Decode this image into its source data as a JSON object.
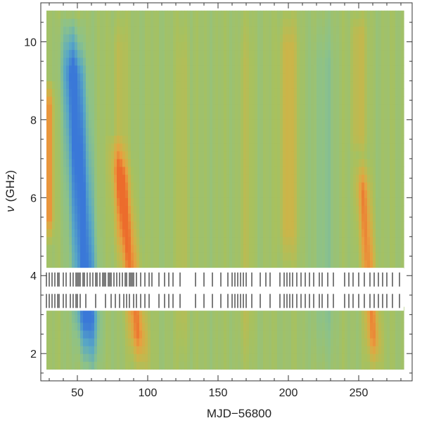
{
  "chart_data": {
    "type": "heatmap",
    "title": "",
    "xlabel": "MJD−56800",
    "ylabel_symbol": "ν",
    "ylabel_unit": "(GHz)",
    "xlim": [
      24,
      288
    ],
    "ylim": [
      1.3,
      11.0
    ],
    "x_ticks": [
      50,
      100,
      150,
      200,
      250
    ],
    "x_tick_labels": [
      "50",
      "100",
      "150",
      "200",
      "250"
    ],
    "y_ticks": [
      2,
      4,
      6,
      8,
      10
    ],
    "y_tick_labels": [
      "2",
      "4",
      "6",
      "8",
      "10"
    ],
    "heatmap_extent": {
      "x": [
        28,
        282
      ],
      "y": [
        1.6,
        10.8
      ]
    },
    "data_gap_ghz": [
      3.1,
      4.2
    ],
    "colormap": [
      "#3a78d8",
      "#5aa9c4",
      "#8cc28a",
      "#a8c15e",
      "#c9b64a",
      "#e8a040",
      "#ec6c2c"
    ],
    "background_level": 0.45,
    "features": [
      {
        "name": "early-high-band-flare",
        "x_center": 30,
        "x_width": 3,
        "y_from": 4.9,
        "y_to": 9.0,
        "drift_per_ghz": 0,
        "amplitude": 0.45
      },
      {
        "name": "low-flux-dip",
        "x_center": 55,
        "x_width": 8,
        "y_from": 1.6,
        "y_to": 10.5,
        "drift_per_ghz": -1.5,
        "amplitude": -0.5
      },
      {
        "name": "flare-1",
        "x_center": 88,
        "x_width": 6,
        "y_from": 1.6,
        "y_to": 7.5,
        "drift_per_ghz": -3.0,
        "amplitude": 0.5
      },
      {
        "name": "flare-1-tail",
        "x_center": 80,
        "x_width": 5,
        "y_from": 4.2,
        "y_to": 10.8,
        "drift_per_ghz": 0,
        "amplitude": 0.15
      },
      {
        "name": "ridge-125",
        "x_center": 125,
        "x_width": 4,
        "y_from": 1.6,
        "y_to": 10.8,
        "drift_per_ghz": 0,
        "amplitude": 0.12
      },
      {
        "name": "ridge-170",
        "x_center": 170,
        "x_width": 5,
        "y_from": 1.6,
        "y_to": 10.8,
        "drift_per_ghz": 0,
        "amplitude": 0.1
      },
      {
        "name": "ridge-200",
        "x_center": 200,
        "x_width": 6,
        "y_from": 4.2,
        "y_to": 10.8,
        "drift_per_ghz": 0,
        "amplitude": 0.25
      },
      {
        "name": "dip-225",
        "x_center": 225,
        "x_width": 8,
        "y_from": 1.6,
        "y_to": 10.8,
        "drift_per_ghz": 0,
        "amplitude": -0.12
      },
      {
        "name": "flare-2",
        "x_center": 257,
        "x_width": 5,
        "y_from": 1.6,
        "y_to": 7.0,
        "drift_per_ghz": -2.0,
        "amplitude": 0.45
      },
      {
        "name": "ridge-250",
        "x_center": 250,
        "x_width": 5,
        "y_from": 7.0,
        "y_to": 10.8,
        "drift_per_ghz": 0,
        "amplitude": 0.2
      }
    ],
    "observation_rows": [
      {
        "y_ghz": 3.9,
        "epochs": [
          28,
          30,
          32,
          34,
          36,
          37,
          40,
          42,
          45,
          47,
          49,
          50,
          51,
          52,
          54,
          55,
          57,
          59,
          61,
          63,
          64,
          66,
          68,
          69,
          70,
          72,
          73,
          74,
          76,
          78,
          80,
          82,
          84,
          85,
          87,
          88,
          89,
          90,
          92,
          95,
          98,
          101,
          103,
          108,
          112,
          115,
          118,
          123,
          134,
          140,
          146,
          152,
          157,
          160,
          162,
          164,
          166,
          168,
          170,
          174,
          180,
          184,
          187,
          194,
          197,
          199,
          201,
          203,
          206,
          209,
          212,
          215,
          218,
          222,
          224,
          228,
          232,
          240,
          243,
          246,
          250,
          254,
          258,
          261,
          264,
          267,
          270,
          274,
          279
        ]
      },
      {
        "y_ghz": 3.35,
        "epochs": [
          28,
          30,
          32,
          34,
          36,
          37,
          40,
          42,
          45,
          47,
          49,
          50,
          52,
          56,
          63,
          70,
          74,
          77,
          80,
          83,
          85,
          87,
          90,
          92,
          95,
          98,
          101,
          108,
          112,
          115,
          118,
          123,
          134,
          140,
          146,
          152,
          157,
          160,
          162,
          164,
          166,
          168,
          170,
          174,
          180,
          187,
          194,
          197,
          199,
          201,
          203,
          206,
          209,
          212,
          215,
          218,
          222,
          224,
          228,
          232,
          240,
          243,
          246,
          250,
          254,
          258,
          261,
          264,
          267,
          270,
          274,
          279
        ]
      }
    ],
    "grid": false,
    "legend": "none"
  }
}
